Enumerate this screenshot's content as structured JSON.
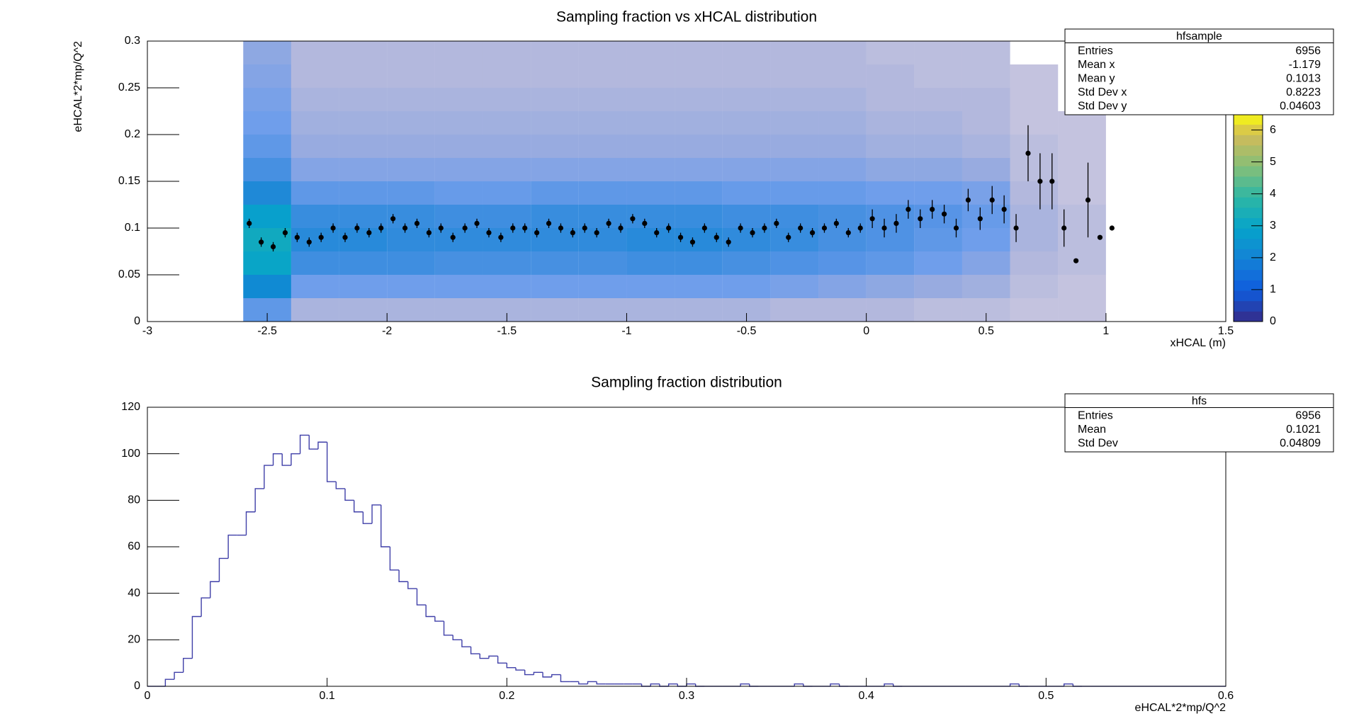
{
  "chart_data": [
    {
      "type": "heatmap",
      "title": "Sampling fraction vs xHCAL distribution",
      "xlabel": "xHCAL (m)",
      "ylabel": "eHCAL*2*mp/Q^2",
      "xlim": [
        -3,
        1.5
      ],
      "xticks": [
        -3,
        -2.5,
        -2,
        -1.5,
        -1,
        -0.5,
        0,
        0.5,
        1,
        1.5
      ],
      "ylim": [
        0,
        0.3
      ],
      "yticks": [
        0,
        0.05,
        0.1,
        0.15,
        0.2,
        0.25,
        0.3
      ],
      "zlim": [
        0,
        6.5
      ],
      "zticks": [
        0,
        1,
        2,
        3,
        4,
        5,
        6
      ],
      "cells": {
        "xbins": [
          -2.6,
          -2.4,
          -2.2,
          -2,
          -1.8,
          -1.6,
          -1.4,
          -1.2,
          -1,
          -0.8,
          -0.6,
          -0.4,
          -0.2,
          0,
          0.2,
          0.4,
          0.6,
          0.8,
          1
        ],
        "ybins": [
          0,
          0.025,
          0.05,
          0.075,
          0.1,
          0.125,
          0.15,
          0.175,
          0.2,
          0.225,
          0.25,
          0.275,
          0.3
        ],
        "z": [
          [
            1.2,
            0.4,
            0.4,
            0.4,
            0.4,
            0.4,
            0.4,
            0.4,
            0.4,
            0.4,
            0.4,
            0.3,
            0.3,
            0.3,
            0.2,
            0.2,
            0.1,
            0.1
          ],
          [
            2.2,
            1,
            1,
            1,
            1,
            1,
            1,
            1,
            1,
            1,
            1,
            0.9,
            0.8,
            0.7,
            0.6,
            0.5,
            0.2,
            0.1
          ],
          [
            3,
            1.6,
            1.6,
            1.6,
            1.5,
            1.5,
            1.5,
            1.5,
            1.6,
            1.6,
            1.5,
            1.4,
            1.3,
            1.2,
            1,
            0.8,
            0.3,
            0.2
          ],
          [
            3.2,
            1.9,
            1.9,
            1.8,
            1.8,
            1.8,
            1.8,
            1.8,
            1.9,
            1.9,
            1.8,
            1.7,
            1.5,
            1.4,
            1.2,
            1,
            0.4,
            0.2
          ],
          [
            2.8,
            1.7,
            1.7,
            1.7,
            1.6,
            1.6,
            1.7,
            1.7,
            1.7,
            1.7,
            1.6,
            1.6,
            1.5,
            1.4,
            1.3,
            1.1,
            0.4,
            0.2
          ],
          [
            2,
            1.2,
            1.2,
            1.2,
            1.1,
            1.1,
            1.2,
            1.2,
            1.2,
            1.2,
            1.1,
            1.1,
            1.1,
            1,
            1,
            0.9,
            0.3,
            0.1
          ],
          [
            1.5,
            0.8,
            0.8,
            0.8,
            0.8,
            0.8,
            0.8,
            0.8,
            0.8,
            0.8,
            0.8,
            0.8,
            0.8,
            0.7,
            0.7,
            0.6,
            0.2,
            0.1
          ],
          [
            1.2,
            0.6,
            0.6,
            0.6,
            0.6,
            0.6,
            0.6,
            0.6,
            0.6,
            0.6,
            0.6,
            0.6,
            0.6,
            0.5,
            0.5,
            0.4,
            0.2,
            0.1
          ],
          [
            1,
            0.5,
            0.5,
            0.5,
            0.5,
            0.5,
            0.5,
            0.5,
            0.5,
            0.5,
            0.5,
            0.5,
            0.5,
            0.4,
            0.4,
            0.3,
            0.1,
            0.1
          ],
          [
            0.9,
            0.4,
            0.4,
            0.4,
            0.4,
            0.4,
            0.4,
            0.4,
            0.4,
            0.4,
            0.4,
            0.4,
            0.4,
            0.3,
            0.3,
            0.3,
            0.1,
            0
          ],
          [
            0.8,
            0.3,
            0.3,
            0.3,
            0.3,
            0.3,
            0.3,
            0.3,
            0.3,
            0.3,
            0.3,
            0.3,
            0.3,
            0.3,
            0.2,
            0.2,
            0.1,
            0
          ],
          [
            0.7,
            0.3,
            0.3,
            0.3,
            0.3,
            0.3,
            0.3,
            0.3,
            0.3,
            0.3,
            0.3,
            0.3,
            0.3,
            0.2,
            0.2,
            0.2,
            0,
            0
          ]
        ]
      },
      "profile": {
        "color": "#000000",
        "x": [
          -2.575,
          -2.525,
          -2.475,
          -2.425,
          -2.375,
          -2.325,
          -2.275,
          -2.225,
          -2.175,
          -2.125,
          -2.075,
          -2.025,
          -1.975,
          -1.925,
          -1.875,
          -1.825,
          -1.775,
          -1.725,
          -1.675,
          -1.625,
          -1.575,
          -1.525,
          -1.475,
          -1.425,
          -1.375,
          -1.325,
          -1.275,
          -1.225,
          -1.175,
          -1.125,
          -1.075,
          -1.025,
          -0.975,
          -0.925,
          -0.875,
          -0.825,
          -0.775,
          -0.725,
          -0.675,
          -0.625,
          -0.575,
          -0.525,
          -0.475,
          -0.425,
          -0.375,
          -0.325,
          -0.275,
          -0.225,
          -0.175,
          -0.125,
          -0.075,
          -0.025,
          0.025,
          0.075,
          0.125,
          0.175,
          0.225,
          0.275,
          0.325,
          0.375,
          0.425,
          0.475,
          0.525,
          0.575,
          0.625,
          0.675,
          0.725,
          0.775,
          0.825,
          0.875,
          0.925,
          0.975,
          1.025
        ],
        "y": [
          0.105,
          0.085,
          0.08,
          0.095,
          0.09,
          0.085,
          0.09,
          0.1,
          0.09,
          0.1,
          0.095,
          0.1,
          0.11,
          0.1,
          0.105,
          0.095,
          0.1,
          0.09,
          0.1,
          0.105,
          0.095,
          0.09,
          0.1,
          0.1,
          0.095,
          0.105,
          0.1,
          0.095,
          0.1,
          0.095,
          0.105,
          0.1,
          0.11,
          0.105,
          0.095,
          0.1,
          0.09,
          0.085,
          0.1,
          0.09,
          0.085,
          0.1,
          0.095,
          0.1,
          0.105,
          0.09,
          0.1,
          0.095,
          0.1,
          0.105,
          0.095,
          0.1,
          0.11,
          0.1,
          0.105,
          0.12,
          0.11,
          0.12,
          0.115,
          0.1,
          0.13,
          0.11,
          0.13,
          0.12,
          0.1,
          0.18,
          0.15,
          0.15,
          0.1,
          0.065,
          0.13,
          0.09,
          0.1
        ],
        "errors": [
          0.005,
          0.005,
          0.005,
          0.005,
          0.005,
          0.005,
          0.005,
          0.005,
          0.005,
          0.005,
          0.005,
          0.005,
          0.005,
          0.005,
          0.005,
          0.005,
          0.005,
          0.005,
          0.005,
          0.005,
          0.005,
          0.005,
          0.005,
          0.005,
          0.005,
          0.005,
          0.005,
          0.005,
          0.005,
          0.005,
          0.005,
          0.005,
          0.005,
          0.005,
          0.005,
          0.005,
          0.005,
          0.005,
          0.005,
          0.005,
          0.005,
          0.005,
          0.005,
          0.005,
          0.005,
          0.005,
          0.005,
          0.005,
          0.005,
          0.005,
          0.005,
          0.005,
          0.01,
          0.01,
          0.01,
          0.01,
          0.01,
          0.01,
          0.01,
          0.01,
          0.012,
          0.012,
          0.015,
          0.015,
          0.015,
          0.03,
          0.03,
          0.03,
          0.02,
          0,
          0.04,
          0,
          0
        ]
      },
      "stats": {
        "title": "hfsample",
        "rows": [
          {
            "label": "Entries",
            "value": 6956
          },
          {
            "label": "Mean x",
            "value": -1.179
          },
          {
            "label": "Mean y",
            "value": 0.1013
          },
          {
            "label": "Std Dev x",
            "value": 0.8223
          },
          {
            "label": "Std Dev y",
            "value": 0.04603
          }
        ]
      }
    },
    {
      "type": "histogram",
      "title": "Sampling fraction distribution",
      "xlabel": "eHCAL*2*mp/Q^2",
      "color": "#3f3fa8",
      "xlim": [
        0,
        0.6
      ],
      "xticks": [
        0,
        0.1,
        0.2,
        0.3,
        0.4,
        0.5,
        0.6
      ],
      "ylim": [
        0,
        120
      ],
      "yticks": [
        0,
        20,
        40,
        60,
        80,
        100,
        120
      ],
      "bins": [
        0,
        0.005,
        0.01,
        0.015,
        0.02,
        0.025,
        0.03,
        0.035,
        0.04,
        0.045,
        0.05,
        0.055,
        0.06,
        0.065,
        0.07,
        0.075,
        0.08,
        0.085,
        0.09,
        0.095,
        0.1,
        0.105,
        0.11,
        0.115,
        0.12,
        0.125,
        0.13,
        0.135,
        0.14,
        0.145,
        0.15,
        0.155,
        0.16,
        0.165,
        0.17,
        0.175,
        0.18,
        0.185,
        0.19,
        0.195,
        0.2,
        0.205,
        0.21,
        0.215,
        0.22,
        0.225,
        0.23,
        0.235,
        0.24,
        0.245,
        0.25,
        0.255,
        0.26,
        0.265,
        0.27,
        0.275,
        0.28,
        0.285,
        0.29,
        0.295,
        0.3,
        0.305,
        0.31,
        0.315,
        0.32,
        0.325,
        0.33,
        0.335,
        0.34,
        0.345,
        0.35,
        0.355,
        0.36,
        0.365,
        0.37,
        0.375,
        0.38,
        0.385,
        0.39,
        0.395,
        0.4,
        0.405,
        0.41,
        0.415,
        0.42,
        0.425,
        0.43,
        0.435,
        0.44,
        0.445,
        0.45,
        0.455,
        0.46,
        0.465,
        0.47,
        0.475,
        0.48,
        0.485,
        0.49,
        0.495,
        0.5,
        0.505,
        0.51,
        0.515,
        0.52,
        0.525,
        0.53,
        0.535,
        0.54,
        0.545,
        0.55,
        0.555,
        0.56,
        0.565,
        0.57,
        0.575,
        0.58,
        0.585,
        0.59,
        0.595,
        0.6
      ],
      "values": [
        0,
        0,
        3,
        6,
        12,
        30,
        38,
        45,
        55,
        65,
        65,
        75,
        85,
        95,
        100,
        95,
        100,
        108,
        102,
        105,
        88,
        85,
        80,
        75,
        70,
        78,
        60,
        50,
        45,
        42,
        35,
        30,
        28,
        22,
        20,
        17,
        14,
        12,
        13,
        10,
        8,
        7,
        5,
        6,
        4,
        5,
        2,
        2,
        1,
        2,
        1,
        1,
        1,
        1,
        1,
        0,
        1,
        0,
        1,
        0,
        1,
        0,
        0,
        0,
        0,
        0,
        1,
        0,
        0,
        0,
        0,
        0,
        1,
        0,
        0,
        0,
        1,
        0,
        0,
        0,
        0,
        0,
        1,
        0,
        0,
        0,
        0,
        0,
        0,
        0,
        0,
        0,
        0,
        0,
        0,
        0,
        1,
        0,
        0,
        0,
        0,
        0,
        1,
        0,
        0,
        0,
        0,
        0,
        0,
        0,
        0,
        0,
        0,
        0,
        0,
        0,
        0,
        0,
        0,
        0
      ],
      "stats": {
        "title": "hfs",
        "rows": [
          {
            "label": "Entries",
            "value": 6956
          },
          {
            "label": "Mean",
            "value": 0.1021
          },
          {
            "label": "Std Dev",
            "value": 0.04809
          }
        ]
      }
    }
  ]
}
